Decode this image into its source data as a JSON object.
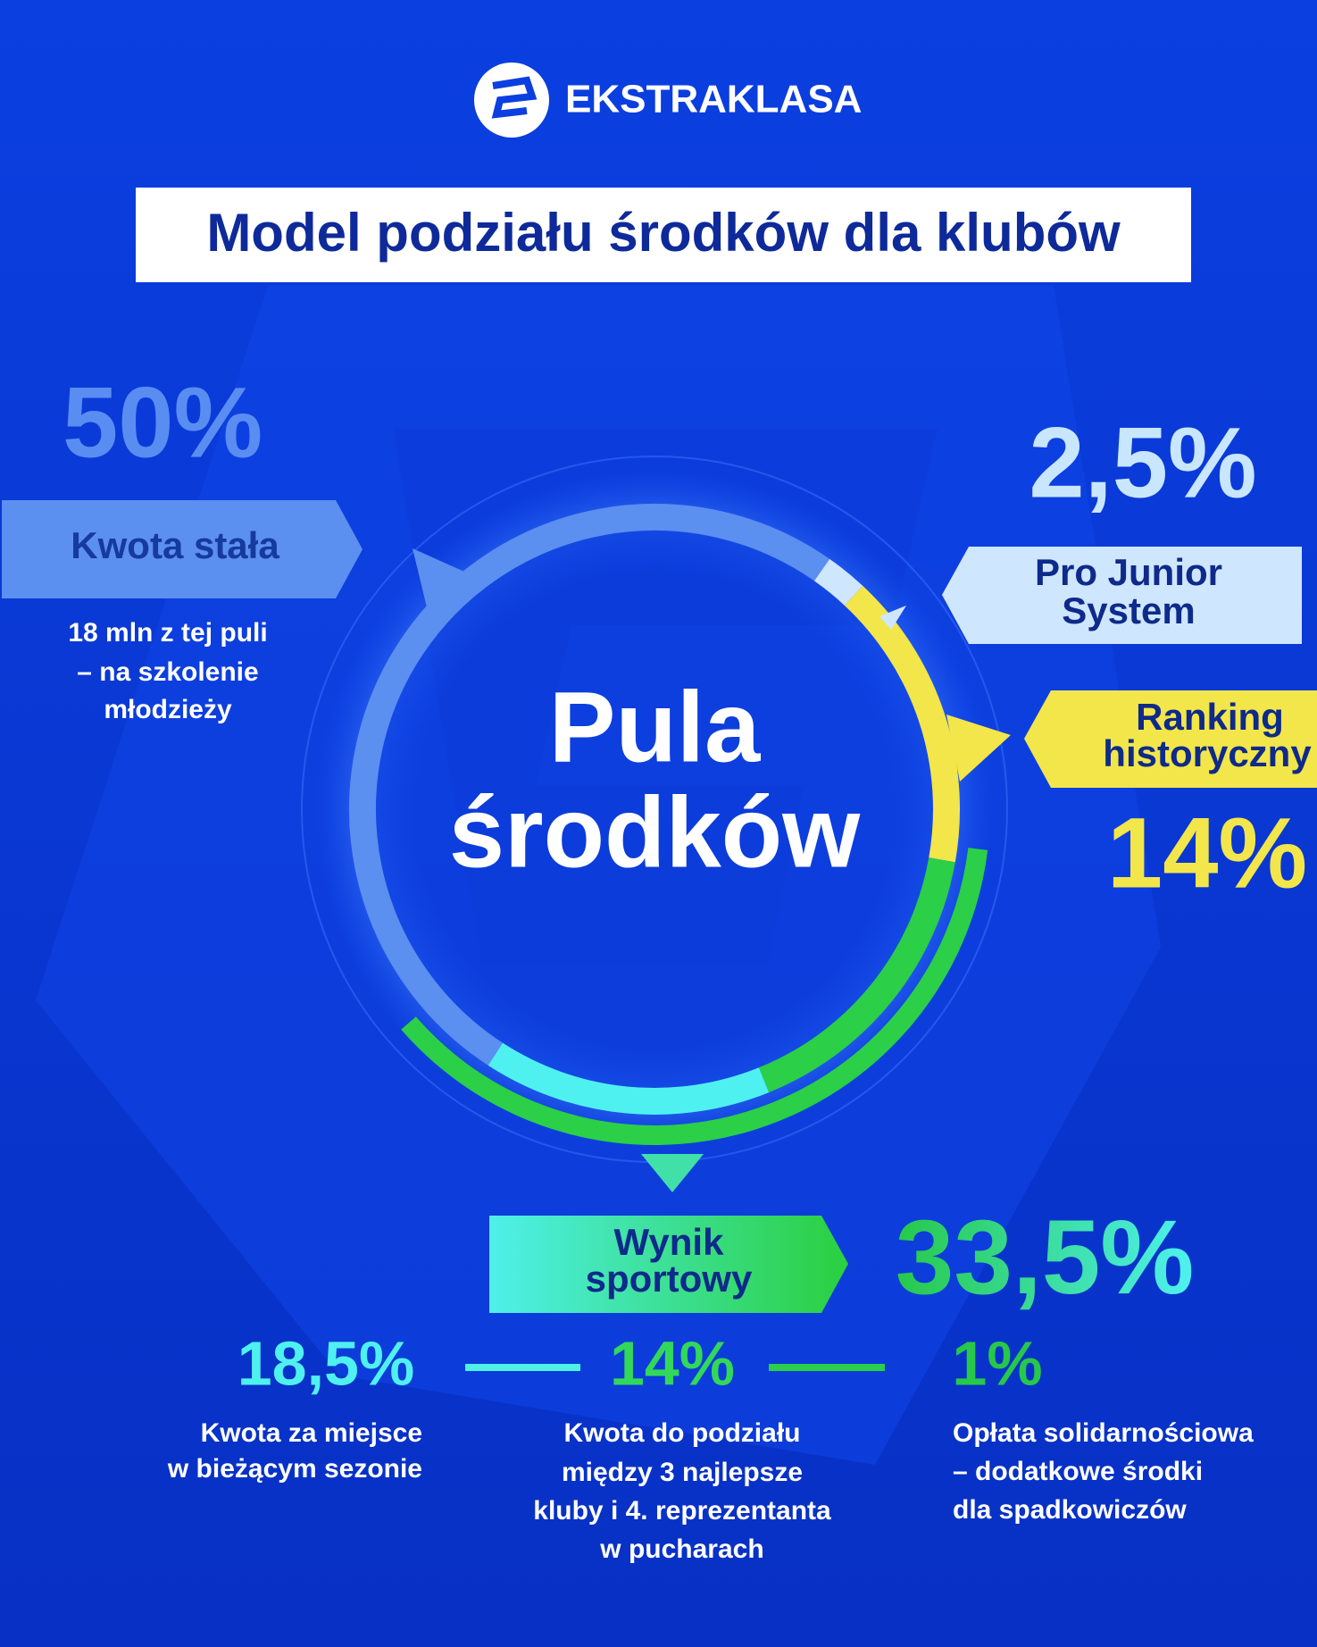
{
  "header": {
    "logo_text": "EKSTRAKLASA",
    "title": "Model podziału środków dla klubów"
  },
  "center": {
    "lines": [
      "Pula",
      "środków"
    ]
  },
  "segments": [
    {
      "percent": "50%",
      "label": [
        "Kwota stała"
      ],
      "description": [
        "18 mln z tej puli",
        "– na szkolenie",
        "młodzieży"
      ]
    },
    {
      "percent": "2,5%",
      "label": [
        "Pro Junior",
        "System"
      ]
    },
    {
      "percent": "14%",
      "label": [
        "Ranking",
        "historyczny"
      ]
    },
    {
      "percent": "33,5%",
      "label": [
        "Wynik",
        "sportowy"
      ],
      "breakdown": [
        {
          "percent": "18,5%",
          "description": [
            "Kwota za miejsce",
            "w bieżącym sezonie"
          ]
        },
        {
          "percent": "14%",
          "description": [
            "Kwota do podziału",
            "między 3 najlepsze",
            "kluby i 4. reprezentanta",
            "w pucharach"
          ]
        },
        {
          "percent": "1%",
          "description": [
            "Opłata solidarnościowa",
            "– dodatkowe środki",
            "dla spadkowiczów"
          ]
        }
      ]
    }
  ]
}
